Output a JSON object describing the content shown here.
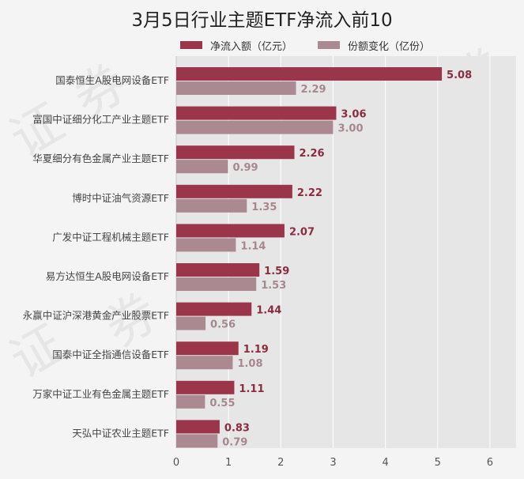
{
  "chart_data": {
    "type": "bar",
    "orientation": "horizontal",
    "title": "3月5日行业主题ETF净流入前10",
    "categories": [
      "国泰恒生A股电网设备ETF",
      "富国中证细分化工产业主题ETF",
      "华夏细分有色金属产业主题ETF",
      "博时中证油气资源ETF",
      "广发中证工程机械主题ETF",
      "易方达恒生A股电网设备ETF",
      "永赢中证沪深港黄金产业股票ETF",
      "国泰中证全指通信设备ETF",
      "万家中证工业有色金属主题ETF",
      "天弘中证农业主题ETF"
    ],
    "series": [
      {
        "name": "净流入额（亿元）",
        "color": "#9b3549",
        "label_color": "#8b2c3e",
        "values": [
          5.08,
          3.06,
          2.26,
          2.22,
          2.07,
          1.59,
          1.44,
          1.19,
          1.11,
          0.83
        ]
      },
      {
        "name": "份额变化（亿份）",
        "color": "#ab8990",
        "label_color": "#a5888e",
        "values": [
          2.29,
          3.0,
          0.99,
          1.35,
          1.14,
          1.53,
          0.56,
          1.08,
          0.55,
          0.79
        ]
      }
    ],
    "xlim": [
      0,
      6.5
    ],
    "xticks": [
      0,
      1,
      2,
      3,
      4,
      5,
      6
    ],
    "grid": true,
    "legend_position": "top",
    "plot_background": "#e6e6e6",
    "grid_color": "#ffffff"
  }
}
